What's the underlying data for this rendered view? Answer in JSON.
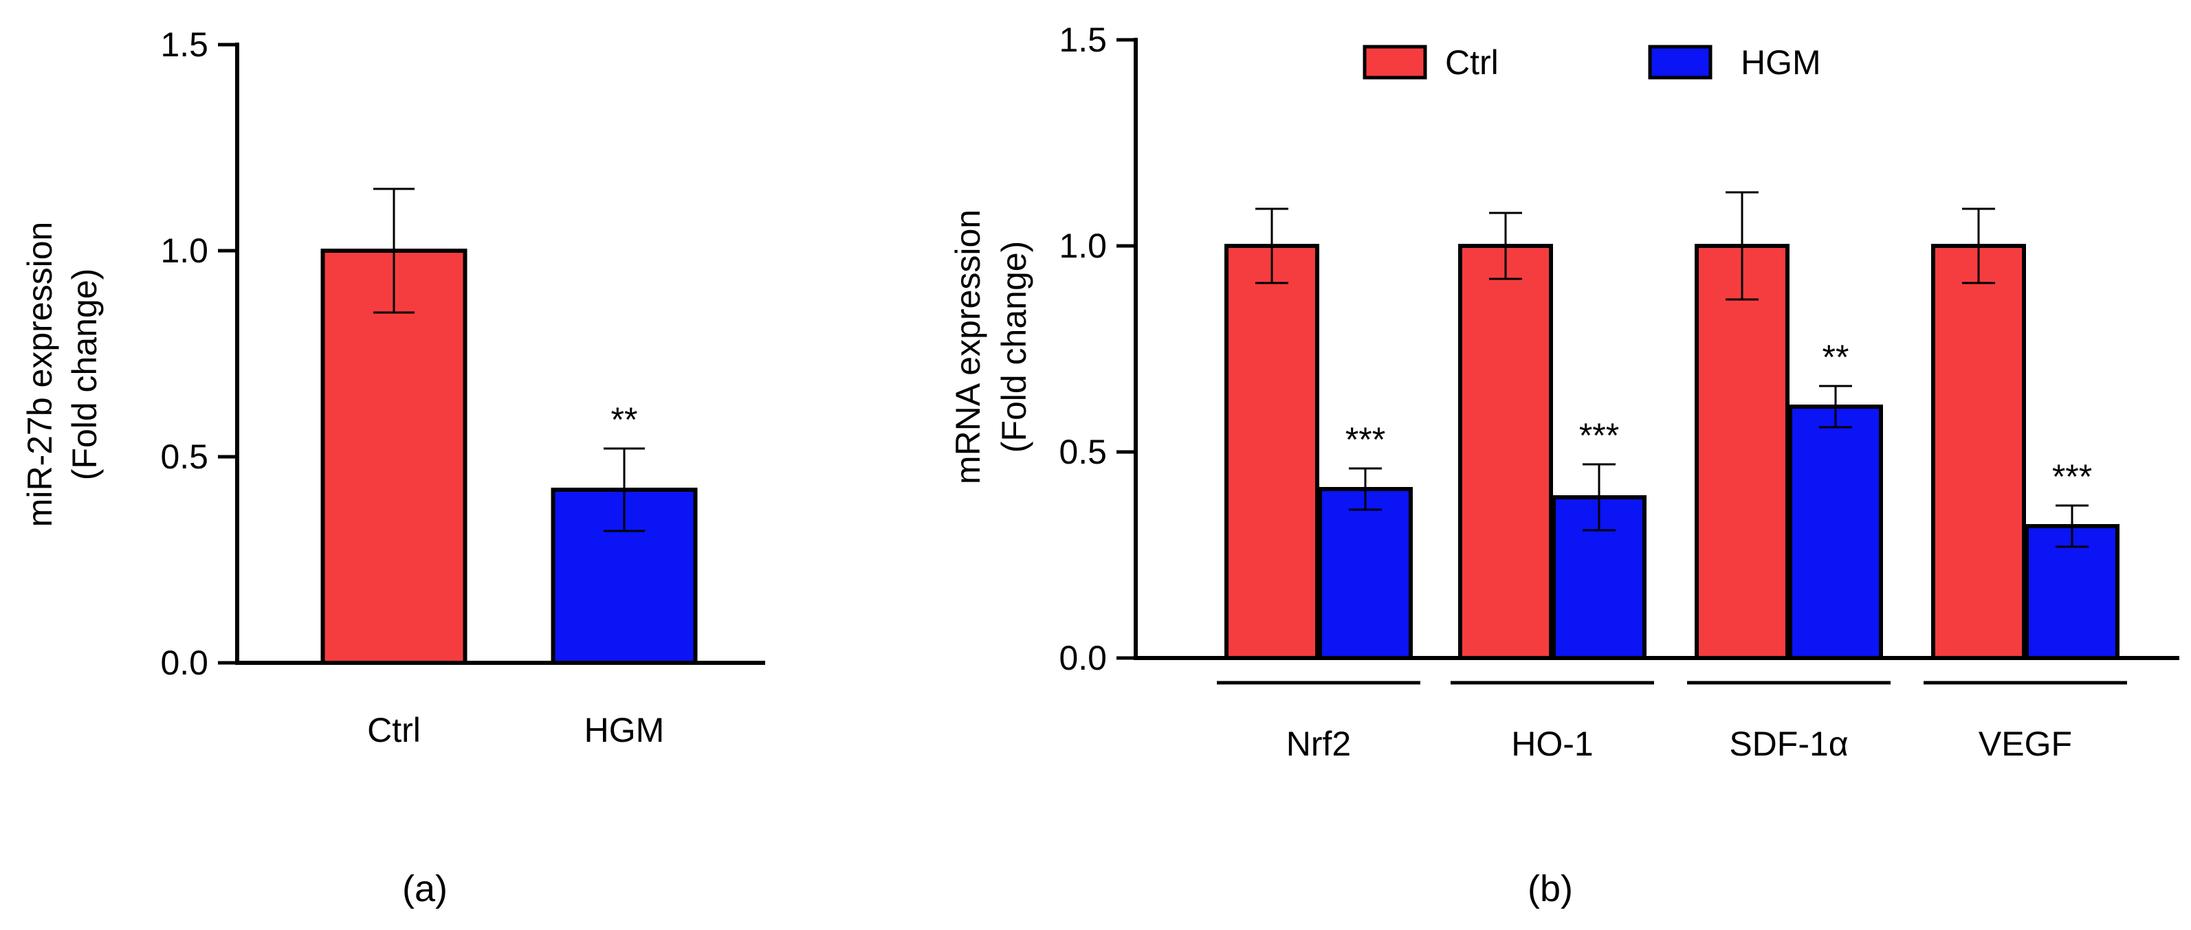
{
  "colors": {
    "ctrl": "#f53d3f",
    "hgm": "#0a14f5",
    "axis": "#000000"
  },
  "chart_data": [
    {
      "panel_label": "(a)",
      "type": "bar",
      "title": "",
      "xlabel": "",
      "ylabel_line1": "miR-27b expression",
      "ylabel_line2": "(Fold change)",
      "ylim": [
        0,
        1.5
      ],
      "yticks": [
        "0.0",
        "0.5",
        "1.0",
        "1.5"
      ],
      "categories": [
        "Ctrl",
        "HGM"
      ],
      "values": [
        1.0,
        0.42
      ],
      "errors": [
        0.15,
        0.1
      ],
      "significance": [
        "",
        "**"
      ]
    },
    {
      "panel_label": "(b)",
      "type": "bar",
      "title": "",
      "xlabel": "",
      "ylabel_line1": "mRNA expression",
      "ylabel_line2": "(Fold change)",
      "ylim": [
        0,
        1.5
      ],
      "yticks": [
        "0.0",
        "0.5",
        "1.0",
        "1.5"
      ],
      "legend": [
        "Ctrl",
        "HGM"
      ],
      "categories": [
        "Nrf2",
        "HO-1",
        "SDF-1α",
        "VEGF"
      ],
      "series": [
        {
          "name": "Ctrl",
          "values": [
            1.0,
            1.0,
            1.0,
            1.0
          ],
          "errors": [
            0.09,
            0.08,
            0.13,
            0.09
          ],
          "significance": [
            "",
            "",
            "",
            ""
          ]
        },
        {
          "name": "HGM",
          "values": [
            0.41,
            0.39,
            0.61,
            0.32
          ],
          "errors": [
            0.05,
            0.08,
            0.05,
            0.05
          ],
          "significance": [
            "***",
            "***",
            "**",
            "***"
          ]
        }
      ]
    }
  ]
}
